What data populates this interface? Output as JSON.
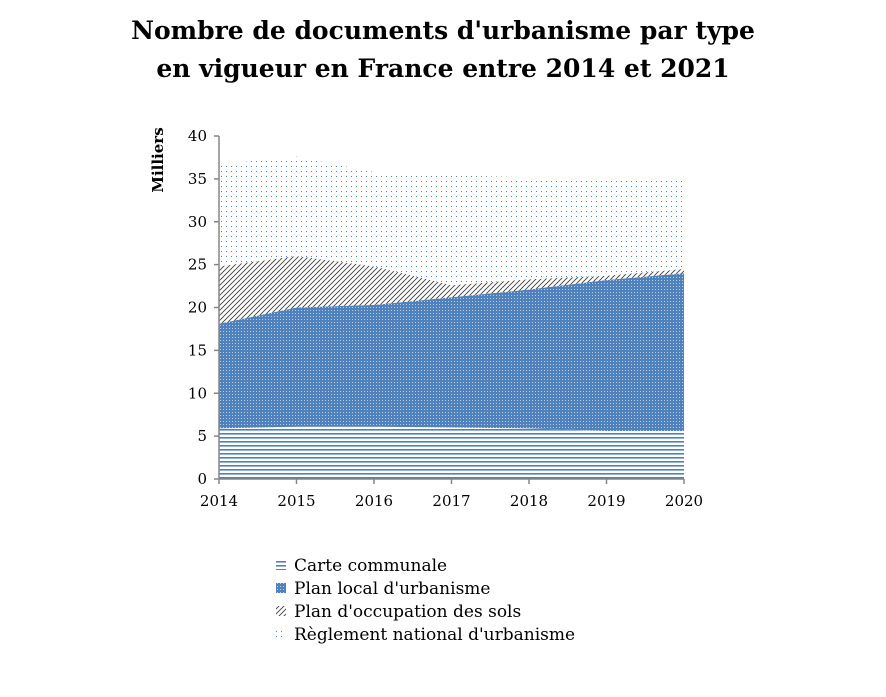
{
  "chart_data": {
    "type": "area",
    "stacked": true,
    "title_line1": "Nombre de documents d'urbanisme par type",
    "title_line2": "en vigueur en France entre 2014 et 2021",
    "ylabel": "Milliers",
    "xlabel": "",
    "ylim": [
      0,
      40
    ],
    "yticks": [
      "0",
      "5",
      "10",
      "15",
      "20",
      "25",
      "30",
      "35",
      "40"
    ],
    "categories": [
      "2014",
      "2015",
      "2016",
      "2017",
      "2018",
      "2019",
      "2020"
    ],
    "grid": false,
    "legend_position": "bottom",
    "series": [
      {
        "name": "Carte communale",
        "values": [
          5.9,
          6.1,
          6.1,
          6.0,
          5.9,
          5.6,
          5.6
        ],
        "pattern": "horizontal-lines",
        "color": "#4f81bd"
      },
      {
        "name": "Plan local d'urbanisme",
        "values": [
          12.2,
          13.9,
          14.2,
          15.2,
          16.2,
          17.6,
          18.4
        ],
        "pattern": "dense-dots",
        "color": "#4f81bd"
      },
      {
        "name": "Plan d'occupation des sols",
        "values": [
          6.7,
          6.0,
          4.5,
          1.4,
          1.2,
          0.5,
          0.5
        ],
        "pattern": "diagonal-lines",
        "color": "#404040"
      },
      {
        "name": "Règlement national d'urbanisme",
        "values": [
          11.9,
          11.6,
          11.0,
          12.8,
          11.9,
          11.3,
          10.5
        ],
        "pattern": "sparse-dots",
        "color": "#4f81bd"
      }
    ]
  }
}
